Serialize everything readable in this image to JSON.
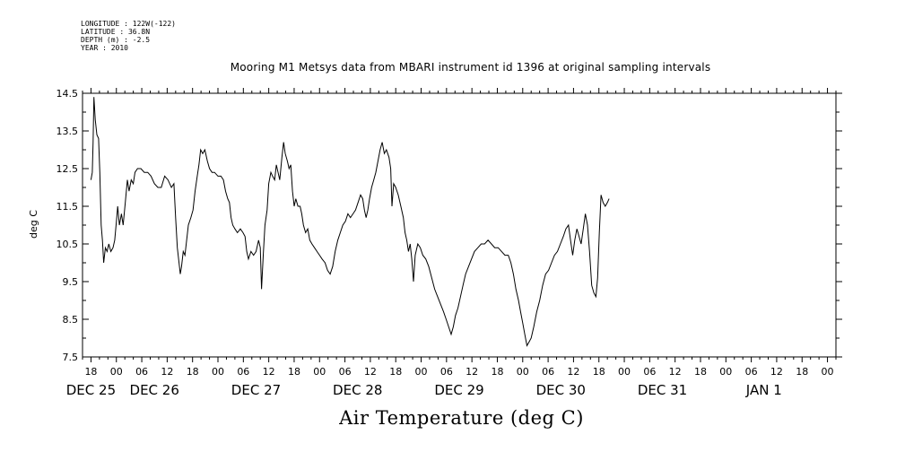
{
  "header": {
    "longitude": "LONGITUDE : 122W(-122)",
    "latitude": "LATITUDE : 36.8N",
    "depth": "DEPTH (m) : -2.5",
    "year": "YEAR : 2010"
  },
  "chart_data": {
    "type": "line",
    "title": "Mooring M1 Metsys data from MBARI instrument id 1396 at original sampling intervals",
    "xlabel": "Air Temperature (deg C)",
    "ylabel": "deg C",
    "ylim": [
      7.5,
      14.5
    ],
    "xlim_hours": [
      -8,
      170
    ],
    "x_unit": "hours from 2010-12-25 00:00",
    "yticks": [
      "7.5",
      "8.5",
      "9.5",
      "10.5",
      "11.5",
      "12.5",
      "13.5",
      "14.5"
    ],
    "hour_ticks": [
      {
        "h": -6,
        "label": "18"
      },
      {
        "h": 0,
        "label": "00"
      },
      {
        "h": 6,
        "label": "06"
      },
      {
        "h": 12,
        "label": "12"
      },
      {
        "h": 18,
        "label": "18"
      },
      {
        "h": 24,
        "label": "00"
      },
      {
        "h": 30,
        "label": "06"
      },
      {
        "h": 36,
        "label": "12"
      },
      {
        "h": 42,
        "label": "18"
      },
      {
        "h": 48,
        "label": "00"
      },
      {
        "h": 54,
        "label": "06"
      },
      {
        "h": 60,
        "label": "12"
      },
      {
        "h": 66,
        "label": "18"
      },
      {
        "h": 72,
        "label": "00"
      },
      {
        "h": 78,
        "label": "06"
      },
      {
        "h": 84,
        "label": "12"
      },
      {
        "h": 90,
        "label": "18"
      },
      {
        "h": 96,
        "label": "00"
      },
      {
        "h": 102,
        "label": "06"
      },
      {
        "h": 108,
        "label": "12"
      },
      {
        "h": 114,
        "label": "18"
      },
      {
        "h": 120,
        "label": "00"
      },
      {
        "h": 126,
        "label": "06"
      },
      {
        "h": 132,
        "label": "12"
      },
      {
        "h": 138,
        "label": "18"
      },
      {
        "h": 144,
        "label": "00"
      },
      {
        "h": 150,
        "label": "06"
      },
      {
        "h": 156,
        "label": "12"
      },
      {
        "h": 162,
        "label": "18"
      },
      {
        "h": 168,
        "label": "00"
      }
    ],
    "day_labels": [
      {
        "h": -6,
        "label": "DEC 25"
      },
      {
        "h": 9,
        "label": "DEC 26"
      },
      {
        "h": 33,
        "label": "DEC 27"
      },
      {
        "h": 57,
        "label": "DEC 28"
      },
      {
        "h": 81,
        "label": "DEC 29"
      },
      {
        "h": 105,
        "label": "DEC 30"
      },
      {
        "h": 129,
        "label": "DEC 31"
      },
      {
        "h": 153,
        "label": "JAN  1"
      }
    ],
    "series": [
      {
        "color": "#000000",
        "points": [
          [
            -6.0,
            12.2
          ],
          [
            -5.7,
            12.4
          ],
          [
            -5.5,
            13.2
          ],
          [
            -5.3,
            14.4
          ],
          [
            -5.0,
            13.8
          ],
          [
            -4.6,
            13.4
          ],
          [
            -4.2,
            13.3
          ],
          [
            -3.9,
            12.4
          ],
          [
            -3.6,
            11.0
          ],
          [
            -3.3,
            10.6
          ],
          [
            -3.0,
            10.0
          ],
          [
            -2.6,
            10.4
          ],
          [
            -2.2,
            10.3
          ],
          [
            -1.8,
            10.5
          ],
          [
            -1.3,
            10.3
          ],
          [
            -0.8,
            10.4
          ],
          [
            -0.4,
            10.6
          ],
          [
            0.0,
            11.1
          ],
          [
            0.3,
            11.5
          ],
          [
            0.7,
            11.0
          ],
          [
            1.2,
            11.3
          ],
          [
            1.6,
            11.0
          ],
          [
            2.1,
            11.6
          ],
          [
            2.6,
            12.2
          ],
          [
            3.0,
            11.9
          ],
          [
            3.5,
            12.2
          ],
          [
            4.0,
            12.1
          ],
          [
            4.4,
            12.4
          ],
          [
            5.0,
            12.5
          ],
          [
            5.8,
            12.5
          ],
          [
            6.6,
            12.4
          ],
          [
            7.4,
            12.4
          ],
          [
            8.2,
            12.3
          ],
          [
            9.0,
            12.1
          ],
          [
            9.8,
            12.0
          ],
          [
            10.6,
            12.0
          ],
          [
            11.4,
            12.3
          ],
          [
            12.2,
            12.2
          ],
          [
            13.0,
            12.0
          ],
          [
            13.6,
            12.1
          ],
          [
            14.0,
            11.2
          ],
          [
            14.4,
            10.4
          ],
          [
            14.8,
            10.0
          ],
          [
            15.1,
            9.7
          ],
          [
            15.4,
            9.9
          ],
          [
            15.8,
            10.3
          ],
          [
            16.2,
            10.2
          ],
          [
            16.6,
            10.6
          ],
          [
            17.0,
            11.0
          ],
          [
            17.6,
            11.2
          ],
          [
            18.1,
            11.4
          ],
          [
            18.6,
            11.9
          ],
          [
            19.1,
            12.3
          ],
          [
            19.5,
            12.6
          ],
          [
            19.9,
            13.0
          ],
          [
            20.4,
            12.9
          ],
          [
            20.9,
            13.0
          ],
          [
            21.5,
            12.7
          ],
          [
            22.0,
            12.5
          ],
          [
            22.6,
            12.4
          ],
          [
            23.2,
            12.4
          ],
          [
            24.0,
            12.3
          ],
          [
            24.7,
            12.3
          ],
          [
            25.3,
            12.2
          ],
          [
            25.8,
            11.9
          ],
          [
            26.3,
            11.7
          ],
          [
            26.7,
            11.6
          ],
          [
            27.1,
            11.2
          ],
          [
            27.5,
            11.0
          ],
          [
            28.0,
            10.9
          ],
          [
            28.6,
            10.8
          ],
          [
            29.3,
            10.9
          ],
          [
            29.9,
            10.8
          ],
          [
            30.4,
            10.7
          ],
          [
            30.8,
            10.3
          ],
          [
            31.2,
            10.1
          ],
          [
            31.8,
            10.3
          ],
          [
            32.4,
            10.2
          ],
          [
            33.0,
            10.3
          ],
          [
            33.6,
            10.6
          ],
          [
            34.0,
            10.4
          ],
          [
            34.3,
            9.3
          ],
          [
            34.7,
            10.2
          ],
          [
            35.1,
            11.0
          ],
          [
            35.6,
            11.4
          ],
          [
            36.0,
            12.1
          ],
          [
            36.5,
            12.4
          ],
          [
            36.9,
            12.3
          ],
          [
            37.4,
            12.2
          ],
          [
            37.8,
            12.6
          ],
          [
            38.2,
            12.4
          ],
          [
            38.6,
            12.2
          ],
          [
            39.1,
            12.8
          ],
          [
            39.5,
            13.2
          ],
          [
            39.9,
            12.9
          ],
          [
            40.4,
            12.7
          ],
          [
            40.8,
            12.5
          ],
          [
            41.2,
            12.6
          ],
          [
            41.6,
            11.9
          ],
          [
            42.0,
            11.5
          ],
          [
            42.4,
            11.7
          ],
          [
            42.9,
            11.5
          ],
          [
            43.4,
            11.5
          ],
          [
            43.8,
            11.3
          ],
          [
            44.2,
            11.0
          ],
          [
            44.7,
            10.8
          ],
          [
            45.2,
            10.9
          ],
          [
            45.7,
            10.6
          ],
          [
            46.2,
            10.5
          ],
          [
            46.8,
            10.4
          ],
          [
            47.4,
            10.3
          ],
          [
            48.0,
            10.2
          ],
          [
            48.6,
            10.1
          ],
          [
            49.3,
            10.0
          ],
          [
            49.9,
            9.8
          ],
          [
            50.5,
            9.7
          ],
          [
            51.1,
            9.9
          ],
          [
            51.7,
            10.3
          ],
          [
            52.3,
            10.6
          ],
          [
            52.9,
            10.8
          ],
          [
            53.5,
            11.0
          ],
          [
            54.1,
            11.1
          ],
          [
            54.7,
            11.3
          ],
          [
            55.3,
            11.2
          ],
          [
            55.9,
            11.3
          ],
          [
            56.5,
            11.4
          ],
          [
            57.1,
            11.6
          ],
          [
            57.7,
            11.8
          ],
          [
            58.2,
            11.7
          ],
          [
            58.6,
            11.4
          ],
          [
            59.0,
            11.2
          ],
          [
            59.4,
            11.4
          ],
          [
            59.8,
            11.7
          ],
          [
            60.3,
            12.0
          ],
          [
            60.8,
            12.2
          ],
          [
            61.3,
            12.4
          ],
          [
            61.8,
            12.7
          ],
          [
            62.3,
            13.0
          ],
          [
            62.8,
            13.2
          ],
          [
            63.3,
            12.9
          ],
          [
            63.8,
            13.0
          ],
          [
            64.4,
            12.8
          ],
          [
            64.8,
            12.5
          ],
          [
            65.1,
            11.5
          ],
          [
            65.5,
            12.1
          ],
          [
            66.0,
            12.0
          ],
          [
            66.6,
            11.8
          ],
          [
            67.2,
            11.5
          ],
          [
            67.8,
            11.2
          ],
          [
            68.2,
            10.8
          ],
          [
            68.6,
            10.6
          ],
          [
            69.0,
            10.3
          ],
          [
            69.4,
            10.5
          ],
          [
            69.8,
            10.1
          ],
          [
            70.2,
            9.5
          ],
          [
            70.6,
            10.2
          ],
          [
            71.2,
            10.5
          ],
          [
            71.8,
            10.4
          ],
          [
            72.4,
            10.2
          ],
          [
            73.1,
            10.1
          ],
          [
            73.8,
            9.9
          ],
          [
            74.5,
            9.6
          ],
          [
            75.2,
            9.3
          ],
          [
            75.9,
            9.1
          ],
          [
            76.6,
            8.9
          ],
          [
            77.3,
            8.7
          ],
          [
            77.9,
            8.5
          ],
          [
            78.5,
            8.3
          ],
          [
            79.1,
            8.1
          ],
          [
            79.6,
            8.3
          ],
          [
            80.1,
            8.6
          ],
          [
            80.7,
            8.8
          ],
          [
            81.3,
            9.1
          ],
          [
            81.9,
            9.4
          ],
          [
            82.5,
            9.7
          ],
          [
            83.2,
            9.9
          ],
          [
            83.9,
            10.1
          ],
          [
            84.6,
            10.3
          ],
          [
            85.4,
            10.4
          ],
          [
            86.2,
            10.5
          ],
          [
            87.0,
            10.5
          ],
          [
            87.8,
            10.6
          ],
          [
            88.6,
            10.5
          ],
          [
            89.4,
            10.4
          ],
          [
            90.2,
            10.4
          ],
          [
            91.0,
            10.3
          ],
          [
            91.8,
            10.2
          ],
          [
            92.6,
            10.2
          ],
          [
            93.2,
            10.0
          ],
          [
            93.8,
            9.7
          ],
          [
            94.4,
            9.3
          ],
          [
            95.0,
            9.0
          ],
          [
            95.5,
            8.7
          ],
          [
            96.0,
            8.4
          ],
          [
            96.5,
            8.1
          ],
          [
            97.0,
            7.8
          ],
          [
            97.5,
            7.9
          ],
          [
            98.0,
            8.0
          ],
          [
            98.6,
            8.3
          ],
          [
            99.3,
            8.7
          ],
          [
            100.0,
            9.0
          ],
          [
            100.7,
            9.4
          ],
          [
            101.4,
            9.7
          ],
          [
            102.1,
            9.8
          ],
          [
            102.8,
            10.0
          ],
          [
            103.5,
            10.2
          ],
          [
            104.2,
            10.3
          ],
          [
            104.9,
            10.5
          ],
          [
            105.6,
            10.7
          ],
          [
            106.2,
            10.9
          ],
          [
            106.8,
            11.0
          ],
          [
            107.3,
            10.6
          ],
          [
            107.8,
            10.2
          ],
          [
            108.3,
            10.6
          ],
          [
            108.8,
            10.9
          ],
          [
            109.3,
            10.7
          ],
          [
            109.8,
            10.5
          ],
          [
            110.3,
            10.9
          ],
          [
            110.8,
            11.3
          ],
          [
            111.3,
            11.0
          ],
          [
            111.8,
            10.3
          ],
          [
            112.3,
            9.4
          ],
          [
            112.8,
            9.2
          ],
          [
            113.3,
            9.1
          ],
          [
            113.7,
            9.6
          ],
          [
            114.1,
            10.8
          ],
          [
            114.5,
            11.8
          ],
          [
            115.0,
            11.6
          ],
          [
            115.5,
            11.5
          ],
          [
            116.0,
            11.6
          ],
          [
            116.4,
            11.7
          ]
        ]
      }
    ]
  }
}
